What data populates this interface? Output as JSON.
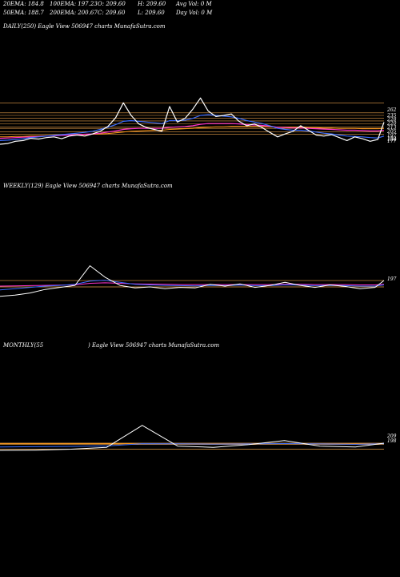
{
  "header": {
    "row1": [
      "20EMA: 184.8",
      "100EMA: 197.23",
      "O: 209.60",
      "H: 209.60",
      "Avg Vol: 0  M"
    ],
    "row2": [
      "50EMA: 188.7",
      "200EMA: 200.67",
      "C: 209.60",
      "L: 209.60",
      "Day Vol: 0  M"
    ]
  },
  "panels": {
    "daily": {
      "label": "DAILY(250) Eagle   View  506947 charts MunafaSutra.com"
    },
    "weekly": {
      "label": "WEEKLY(129) Eagle   View  506947 charts MunafaSutra.com"
    },
    "monthly": {
      "label_left": "MONTHLY(55",
      "label_right": ") Eagle   View  506947 charts MunafaSutra.com"
    }
  },
  "colors": {
    "background": "#000000",
    "price": "#ffffff",
    "ema_blue": "#3a6cff",
    "ema_magenta": "#ff33cc",
    "ema_orange": "#ff9a1a",
    "level_lines": "#e8a04a"
  },
  "chart_data": [
    {
      "type": "line",
      "name": "daily",
      "x": [
        0,
        5,
        10,
        15,
        20,
        25,
        30,
        35,
        40,
        45,
        50,
        55,
        60,
        65,
        70,
        75,
        80,
        85,
        90,
        95,
        100,
        105,
        110,
        115,
        120,
        125,
        130,
        135,
        140,
        145,
        150,
        155,
        160,
        165,
        170,
        175,
        180,
        185,
        190,
        195,
        200,
        205,
        210,
        215,
        220,
        225,
        230,
        235,
        240,
        245,
        249
      ],
      "close": [
        150,
        152,
        158,
        160,
        166,
        164,
        168,
        170,
        165,
        172,
        175,
        172,
        178,
        185,
        198,
        222,
        262,
        228,
        205,
        195,
        190,
        185,
        252,
        210,
        220,
        245,
        275,
        240,
        225,
        228,
        232,
        212,
        200,
        205,
        195,
        182,
        170,
        178,
        185,
        200,
        188,
        175,
        172,
        176,
        168,
        160,
        170,
        165,
        158,
        163,
        209.6
      ],
      "ema_blue": [
        160,
        161,
        163,
        165,
        168,
        170,
        172,
        174,
        176,
        178,
        180,
        182,
        185,
        190,
        196,
        203,
        212,
        214,
        212,
        210,
        208,
        206,
        214,
        214,
        215,
        220,
        228,
        230,
        228,
        226,
        224,
        220,
        214,
        210,
        206,
        200,
        193,
        190,
        188,
        188,
        186,
        183,
        180,
        178,
        175,
        172,
        171,
        170,
        168,
        167,
        172
      ],
      "ema_magenta": [
        166,
        167,
        168,
        169,
        170,
        171,
        172,
        173,
        174,
        175,
        176,
        177,
        178,
        180,
        183,
        186,
        190,
        192,
        193,
        193,
        193,
        193,
        196,
        197,
        198,
        200,
        204,
        206,
        206,
        206,
        206,
        205,
        203,
        202,
        201,
        199,
        196,
        195,
        194,
        194,
        193,
        192,
        191,
        190,
        189,
        188,
        188,
        187,
        186,
        186,
        188
      ],
      "ema_orange": [
        170,
        170,
        171,
        171,
        172,
        172,
        173,
        173,
        174,
        175,
        175,
        176,
        177,
        178,
        179,
        181,
        183,
        185,
        186,
        187,
        188,
        188,
        190,
        191,
        192,
        193,
        195,
        196,
        197,
        197,
        198,
        198,
        198,
        198,
        198,
        197,
        196,
        196,
        196,
        196,
        195,
        195,
        194,
        194,
        193,
        193,
        193,
        192,
        192,
        192,
        193
      ],
      "levels": [
        262,
        235,
        228,
        220,
        213,
        205,
        197,
        193,
        184,
        177
      ],
      "level_labels": [
        "262",
        "235",
        "228",
        "220",
        "213",
        "205",
        "197",
        "193",
        "184",
        "177"
      ],
      "ylim": [
        130,
        330
      ]
    },
    {
      "type": "line",
      "name": "weekly",
      "x": [
        0,
        5,
        10,
        15,
        20,
        25,
        30,
        35,
        40,
        45,
        50,
        55,
        60,
        65,
        70,
        75,
        80,
        85,
        90,
        95,
        100,
        105,
        110,
        115,
        120,
        125,
        128
      ],
      "close": [
        135,
        140,
        148,
        162,
        170,
        178,
        255,
        210,
        178,
        168,
        172,
        165,
        170,
        168,
        182,
        175,
        184,
        170,
        178,
        190,
        178,
        170,
        180,
        174,
        165,
        170,
        197
      ],
      "ema_blue": [
        160,
        165,
        170,
        175,
        178,
        182,
        195,
        198,
        190,
        182,
        180,
        178,
        177,
        176,
        178,
        177,
        179,
        177,
        177,
        180,
        179,
        177,
        178,
        177,
        175,
        175,
        180
      ],
      "ema_magenta": [
        175,
        176,
        177,
        178,
        179,
        180,
        186,
        188,
        186,
        184,
        183,
        182,
        181,
        181,
        181,
        181,
        181,
        181,
        181,
        182,
        182,
        181,
        181,
        181,
        180,
        180,
        182
      ],
      "levels": [
        197,
        172
      ],
      "level_labels": [
        "197"
      ],
      "ylim": [
        0,
        1500
      ]
    },
    {
      "type": "line",
      "name": "monthly",
      "x": [
        0,
        5,
        10,
        15,
        20,
        25,
        30,
        35,
        40,
        45,
        50,
        54
      ],
      "close": [
        150,
        152,
        160,
        175,
        355,
        185,
        175,
        198,
        230,
        185,
        178,
        209
      ],
      "ema_blue": [
        178,
        180,
        183,
        186,
        205,
        204,
        202,
        203,
        206,
        203,
        200,
        205
      ],
      "level_orange": 205,
      "levels": [
        209,
        198,
        160
      ],
      "level_labels": [
        "209",
        "198"
      ],
      "ylim": [
        0,
        2000
      ]
    }
  ]
}
